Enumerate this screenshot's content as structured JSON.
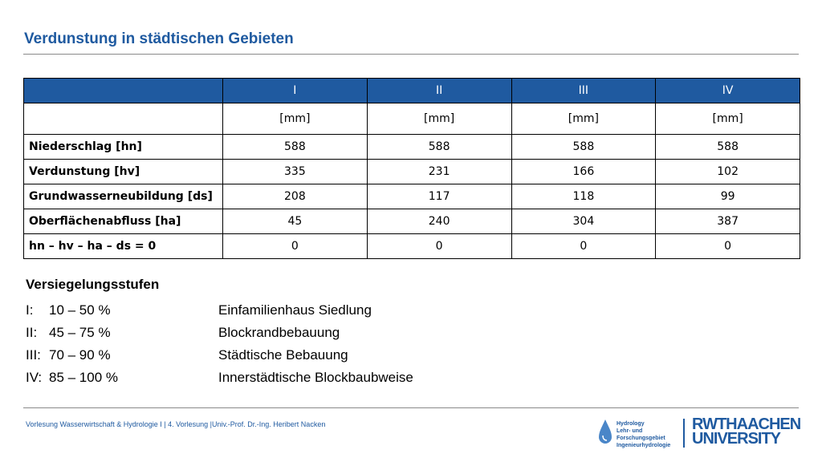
{
  "slide": {
    "title": "Verdunstung in städtischen Gebieten"
  },
  "table": {
    "headers": [
      "",
      "I",
      "II",
      "III",
      "IV"
    ],
    "units": [
      "",
      "[mm]",
      "[mm]",
      "[mm]",
      "[mm]"
    ],
    "rows": [
      {
        "label": "Niederschlag [hn]",
        "values": [
          "588",
          "588",
          "588",
          "588"
        ]
      },
      {
        "label": "Verdunstung [hv]",
        "values": [
          "335",
          "231",
          "166",
          "102"
        ]
      },
      {
        "label": "Grundwasserneubildung [ds]",
        "values": [
          "208",
          "117",
          "118",
          "99"
        ]
      },
      {
        "label": "Oberflächenabfluss [ha]",
        "values": [
          "45",
          "240",
          "304",
          "387"
        ]
      },
      {
        "label": "hn – hv – ha – ds = 0",
        "values": [
          "0",
          "0",
          "0",
          "0"
        ]
      }
    ]
  },
  "levels": {
    "heading": "Versiegelungsstufen",
    "items": [
      {
        "roman": "I:",
        "range": "10 – 50 %",
        "desc": "Einfamilienhaus Siedlung"
      },
      {
        "roman": "II:",
        "range": "45 – 75 %",
        "desc": "Blockrandbebauung"
      },
      {
        "roman": "III:",
        "range": "70 – 90 %",
        "desc": "Städtische Bebauung"
      },
      {
        "roman": "IV:",
        "range": "85 – 100 %",
        "desc": "Innerstädtische Blockbaubweise"
      }
    ]
  },
  "footer": {
    "text": "Vorlesung Wasserwirtschaft & Hydrologie I | 4. Vorlesung |Univ.-Prof. Dr.-Ing. Heribert Nacken",
    "hydro_logo_lines": [
      "Hydrology",
      "Lehr- und",
      "Forschungsgebiet",
      "Ingenieurhydrologie"
    ],
    "rwth_logo_line1": "RWTHAACHEN",
    "rwth_logo_line2": "UNIVERSITY",
    "brand_color": "#1f5aa0"
  }
}
